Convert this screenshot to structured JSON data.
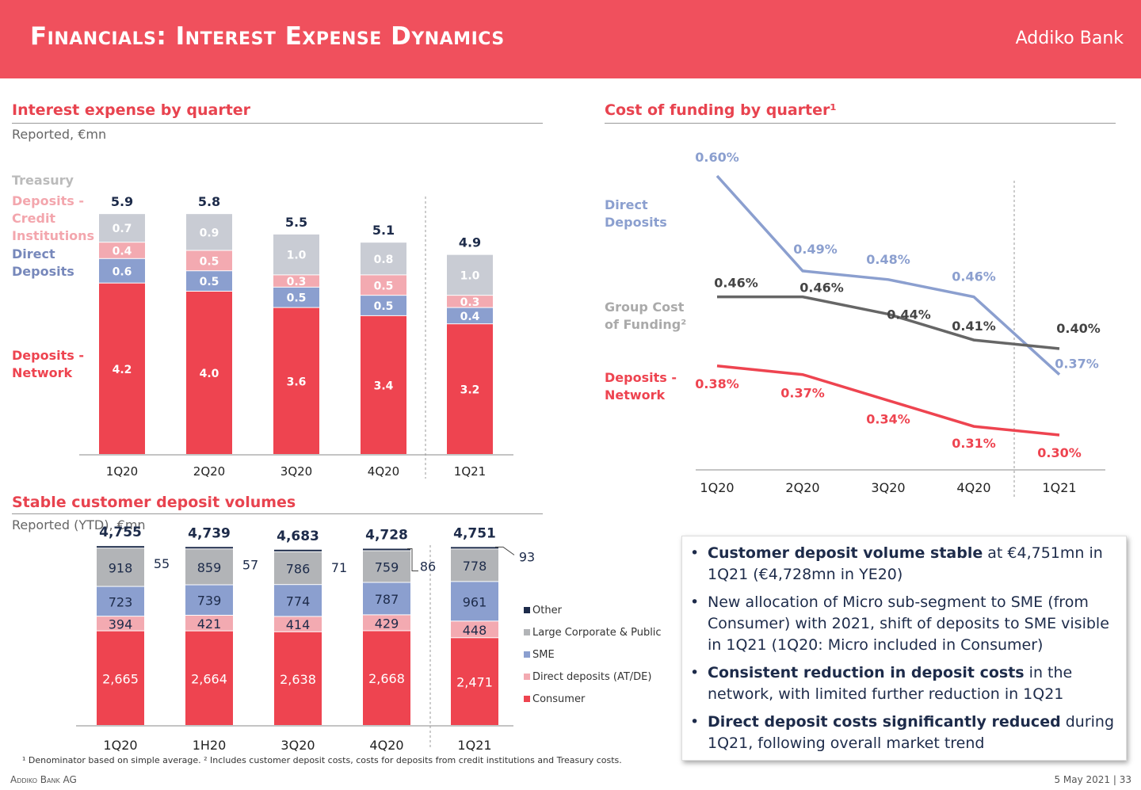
{
  "header": {
    "title": "Financials: Interest Expense Dynamics",
    "brand": "Addiko Bank"
  },
  "colors": {
    "header": "#f0505d",
    "network": "#ee4450",
    "direct": "#8b9fcf",
    "credit": "#f3aab1",
    "treasury": "#c9ccd4",
    "other": "#1d2b4a",
    "large_corporate": "#b2b4b7",
    "group": "#666666"
  },
  "sections": {
    "interest": {
      "title": "Interest expense by quarter",
      "sub": "Reported, €mn"
    },
    "funding": {
      "title": "Cost of funding by quarter¹"
    },
    "deposits": {
      "title": "Stable customer deposit volumes",
      "sub": "Reported (YTD), €mn"
    }
  },
  "chart_data": [
    {
      "type": "bar",
      "stacked": true,
      "title": "Interest expense by quarter",
      "subtitle": "Reported, €mn",
      "categories": [
        "1Q20",
        "2Q20",
        "3Q20",
        "4Q20",
        "1Q21"
      ],
      "series": [
        {
          "name": "Deposits - Network",
          "label_lines": [
            "Deposits -",
            "Network"
          ],
          "values": [
            4.2,
            4.0,
            3.6,
            3.4,
            3.2
          ]
        },
        {
          "name": "Direct Deposits",
          "label_lines": [
            "Direct",
            "Deposits"
          ],
          "values": [
            0.6,
            0.5,
            0.5,
            0.5,
            0.4
          ]
        },
        {
          "name": "Deposits - Credit Institutions",
          "label_lines": [
            "Deposits -",
            "Credit",
            "Institutions"
          ],
          "values": [
            0.4,
            0.5,
            0.3,
            0.5,
            0.3
          ]
        },
        {
          "name": "Treasury",
          "label_lines": [
            "Treasury"
          ],
          "values": [
            0.7,
            0.9,
            1.0,
            0.8,
            1.0
          ]
        }
      ],
      "totals": [
        5.9,
        5.8,
        5.5,
        5.1,
        4.9
      ],
      "ylim": [
        0,
        6.2
      ]
    },
    {
      "type": "line",
      "title": "Cost of funding by quarter¹",
      "x": [
        "1Q20",
        "2Q20",
        "3Q20",
        "4Q20",
        "1Q21"
      ],
      "series": [
        {
          "name": "Direct Deposits",
          "label_lines": [
            "Direct",
            "Deposits"
          ],
          "values": [
            0.6,
            0.49,
            0.48,
            0.46,
            0.37
          ],
          "labels": [
            "0.60%",
            "0.49%",
            "0.48%",
            "0.46%",
            "0.37%"
          ]
        },
        {
          "name": "Group Cost of Funding²",
          "label_lines": [
            "Group Cost",
            "of Funding²"
          ],
          "values": [
            0.46,
            0.46,
            0.44,
            0.41,
            0.4
          ],
          "labels": [
            "0.46%",
            "0.46%",
            "0.44%",
            "0.41%",
            "0.40%"
          ]
        },
        {
          "name": "Deposits - Network",
          "label_lines": [
            "Deposits -",
            "Network"
          ],
          "values": [
            0.38,
            0.37,
            0.34,
            0.31,
            0.3
          ],
          "labels": [
            "0.38%",
            "0.37%",
            "0.34%",
            "0.31%",
            "0.30%"
          ]
        }
      ],
      "ylim": [
        0.27,
        0.62
      ]
    },
    {
      "type": "bar",
      "stacked": true,
      "title": "Stable customer deposit volumes",
      "subtitle": "Reported (YTD), €mn",
      "categories": [
        "1Q20",
        "1H20",
        "3Q20",
        "4Q20",
        "1Q21"
      ],
      "series": [
        {
          "name": "Consumer",
          "values": [
            2665,
            2664,
            2638,
            2668,
            2471
          ],
          "labels": [
            "2,665",
            "2,664",
            "2,638",
            "2,668",
            "2,471"
          ]
        },
        {
          "name": "Direct deposits (AT/DE)",
          "values": [
            394,
            421,
            414,
            429,
            448
          ],
          "labels": [
            "394",
            "421",
            "414",
            "429",
            "448"
          ]
        },
        {
          "name": "SME",
          "values": [
            723,
            739,
            774,
            787,
            961
          ],
          "labels": [
            "723",
            "739",
            "774",
            "787",
            "961"
          ]
        },
        {
          "name": "Large Corporate & Public",
          "values": [
            918,
            859,
            786,
            759,
            778
          ],
          "labels": [
            "918",
            "859",
            "786",
            "759",
            "778"
          ]
        },
        {
          "name": "Other",
          "values": [
            55,
            57,
            71,
            86,
            93
          ],
          "labels": [
            "55",
            "57",
            "71",
            "86",
            "93"
          ]
        }
      ],
      "totals": [
        "4,755",
        "4,739",
        "4,683",
        "4,728",
        "4,751"
      ],
      "legend": [
        "Other",
        "Large Corporate & Public",
        "SME",
        "Direct deposits (AT/DE)",
        "Consumer"
      ]
    }
  ],
  "bullets": [
    {
      "bold": "Customer deposit volume stable",
      "rest": " at €4,751mn in 1Q21 (€4,728mn in YE20)"
    },
    {
      "bold": "",
      "rest": "New allocation of Micro sub-segment to SME (from Consumer) with 2021, shift of deposits to SME visible in 1Q21 (1Q20: Micro included in Consumer)"
    },
    {
      "bold": "Consistent reduction in deposit costs",
      "rest": " in the network, with limited further reduction in 1Q21"
    },
    {
      "bold": "Direct deposit costs significantly reduced",
      "rest": " during 1Q21, following overall market trend"
    }
  ],
  "footnote": "¹ Denominator based on simple average. ² Includes customer deposit costs, costs for deposits from credit institutions and Treasury costs.",
  "footer": {
    "left": "Addiko Bank AG",
    "right": "5 May 2021 | 33"
  }
}
